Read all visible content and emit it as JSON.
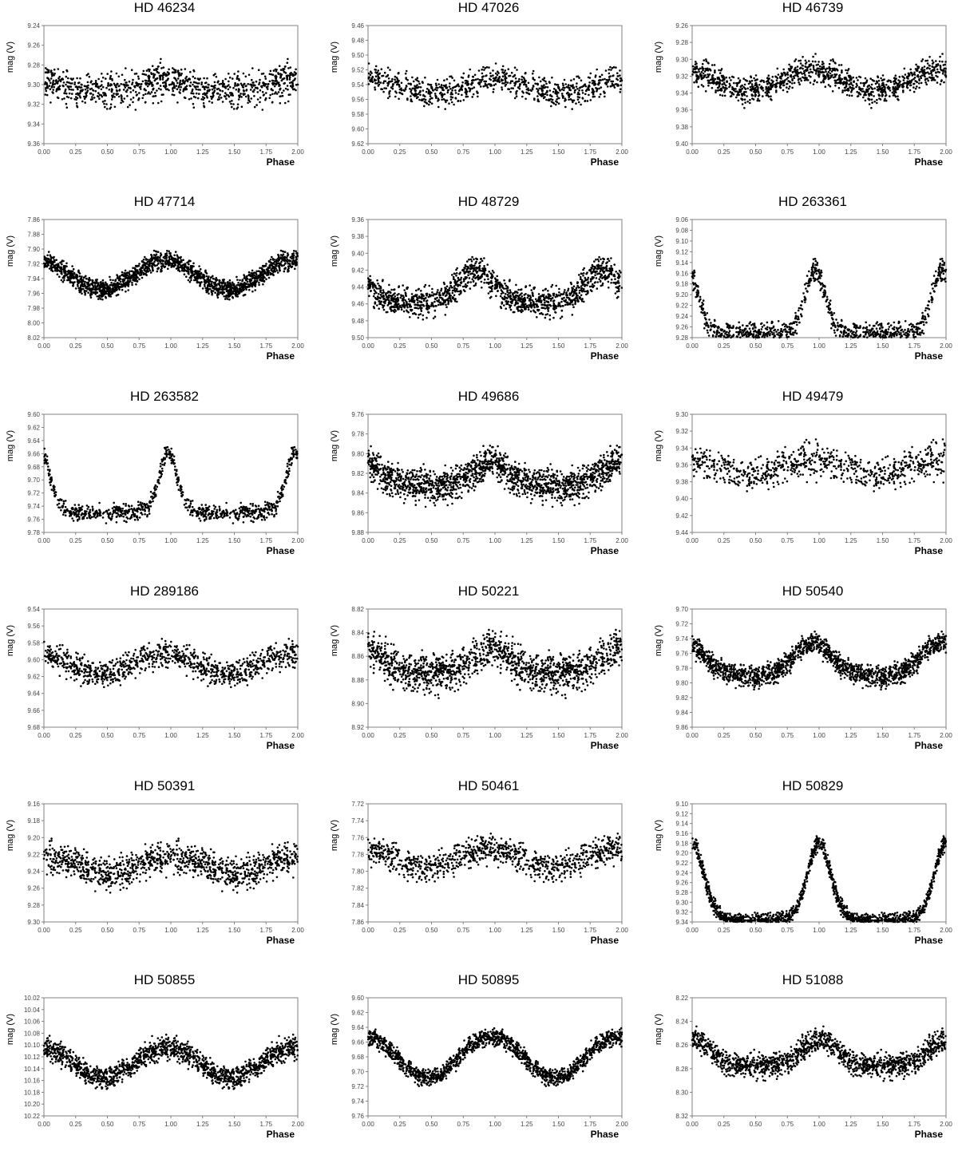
{
  "figure": {
    "xlabel": "Phase",
    "ylabel": "mag (V)",
    "x_ticks": [
      "0.00",
      "0.25",
      "0.50",
      "0.75",
      "1.00",
      "1.25",
      "1.50",
      "1.75",
      "2.00"
    ],
    "point_color": "#000000"
  },
  "chart_data": [
    {
      "type": "scatter",
      "title": "HD 46234",
      "y_ticks": [
        "9.24",
        "9.26",
        "9.28",
        "9.30",
        "9.32",
        "9.34",
        "9.36"
      ],
      "ylim": [
        9.36,
        9.24
      ],
      "xlim": [
        0,
        2
      ],
      "model": {
        "mean": 9.302,
        "amp": -0.006,
        "peak": 0.98,
        "sharp": 1,
        "noise": 0.012,
        "n": 480
      }
    },
    {
      "type": "scatter",
      "title": "HD 47026",
      "y_ticks": [
        "9.46",
        "9.48",
        "9.50",
        "9.52",
        "9.54",
        "9.56",
        "9.58",
        "9.60",
        "9.62"
      ],
      "ylim": [
        9.62,
        9.46
      ],
      "xlim": [
        0,
        2
      ],
      "model": {
        "mean": 9.542,
        "amp": -0.01,
        "peak": 1.0,
        "sharp": 1,
        "noise": 0.013,
        "n": 420
      }
    },
    {
      "type": "scatter",
      "title": "HD 46739",
      "y_ticks": [
        "9.26",
        "9.28",
        "9.30",
        "9.32",
        "9.34",
        "9.36",
        "9.38",
        "9.40"
      ],
      "ylim": [
        9.4,
        9.26
      ],
      "xlim": [
        0,
        2
      ],
      "model": {
        "mean": 9.325,
        "amp": -0.012,
        "peak": 0.95,
        "sharp": 1,
        "noise": 0.011,
        "n": 560
      }
    },
    {
      "type": "scatter",
      "title": "HD 47714",
      "y_ticks": [
        "7.86",
        "7.88",
        "7.90",
        "7.92",
        "7.94",
        "7.96",
        "7.98",
        "8.00",
        "8.02"
      ],
      "ylim": [
        8.02,
        7.86
      ],
      "xlim": [
        0,
        2
      ],
      "model": {
        "mean": 7.935,
        "amp": -0.02,
        "peak": 0.95,
        "sharp": 1,
        "noise": 0.009,
        "n": 850
      }
    },
    {
      "type": "scatter",
      "title": "HD 48729",
      "y_ticks": [
        "9.36",
        "9.38",
        "9.40",
        "9.42",
        "9.44",
        "9.46",
        "9.48",
        "9.50"
      ],
      "ylim": [
        9.5,
        9.36
      ],
      "xlim": [
        0,
        2
      ],
      "model": {
        "mean": 9.44,
        "amp": -0.02,
        "peak": 0.85,
        "sharp": 1.5,
        "noise": 0.012,
        "n": 700
      }
    },
    {
      "type": "scatter",
      "title": "HD 263361",
      "y_ticks": [
        "9.06",
        "9.08",
        "9.10",
        "9.12",
        "9.14",
        "9.16",
        "9.18",
        "9.20",
        "9.22",
        "9.24",
        "9.26",
        "9.28"
      ],
      "ylim": [
        9.28,
        9.06
      ],
      "xlim": [
        0,
        2
      ],
      "model": {
        "mean": 9.215,
        "amp": -0.06,
        "peak": 0.97,
        "sharp": 4,
        "noise": 0.015,
        "n": 560
      }
    },
    {
      "type": "scatter",
      "title": "HD 263582",
      "y_ticks": [
        "9.60",
        "9.62",
        "9.64",
        "9.66",
        "9.68",
        "9.70",
        "9.72",
        "9.74",
        "9.76",
        "9.78"
      ],
      "ylim": [
        9.78,
        9.6
      ],
      "xlim": [
        0,
        2
      ],
      "model": {
        "mean": 9.705,
        "amp": -0.045,
        "peak": 0.98,
        "sharp": 5,
        "noise": 0.009,
        "n": 430
      }
    },
    {
      "type": "scatter",
      "title": "HD 49686",
      "y_ticks": [
        "9.76",
        "9.78",
        "9.80",
        "9.82",
        "9.84",
        "9.86",
        "9.88"
      ],
      "ylim": [
        9.88,
        9.76
      ],
      "xlim": [
        0,
        2
      ],
      "model": {
        "mean": 9.822,
        "amp": -0.012,
        "peak": 0.97,
        "sharp": 1.4,
        "noise": 0.011,
        "n": 800
      }
    },
    {
      "type": "scatter",
      "title": "HD 49479",
      "y_ticks": [
        "9.30",
        "9.32",
        "9.34",
        "9.36",
        "9.38",
        "9.40",
        "9.42",
        "9.44"
      ],
      "ylim": [
        9.44,
        9.3
      ],
      "xlim": [
        0,
        2
      ],
      "model": {
        "mean": 9.362,
        "amp": -0.008,
        "peak": 0.95,
        "sharp": 1,
        "noise": 0.014,
        "n": 380
      }
    },
    {
      "type": "scatter",
      "title": "HD 289186",
      "y_ticks": [
        "9.54",
        "9.56",
        "9.58",
        "9.60",
        "9.62",
        "9.64",
        "9.66",
        "9.68"
      ],
      "ylim": [
        9.68,
        9.54
      ],
      "xlim": [
        0,
        2
      ],
      "model": {
        "mean": 9.605,
        "amp": -0.012,
        "peak": 0.95,
        "sharp": 1,
        "noise": 0.011,
        "n": 500
      }
    },
    {
      "type": "scatter",
      "title": "HD 50221",
      "y_ticks": [
        "8.82",
        "8.84",
        "8.86",
        "8.88",
        "8.90",
        "8.92"
      ],
      "ylim": [
        8.92,
        8.82
      ],
      "xlim": [
        0,
        2
      ],
      "model": {
        "mean": 8.865,
        "amp": -0.012,
        "peak": 0.97,
        "sharp": 1.3,
        "noise": 0.011,
        "n": 720
      }
    },
    {
      "type": "scatter",
      "title": "HD 50540",
      "y_ticks": [
        "9.70",
        "9.72",
        "9.74",
        "9.76",
        "9.78",
        "9.80",
        "9.82",
        "9.84",
        "9.86"
      ],
      "ylim": [
        9.86,
        9.7
      ],
      "xlim": [
        0,
        2
      ],
      "model": {
        "mean": 9.77,
        "amp": -0.025,
        "peak": 0.95,
        "sharp": 1.2,
        "noise": 0.01,
        "n": 780
      }
    },
    {
      "type": "scatter",
      "title": "HD 50391",
      "y_ticks": [
        "9.16",
        "9.18",
        "9.20",
        "9.22",
        "9.24",
        "9.26",
        "9.28",
        "9.30"
      ],
      "ylim": [
        9.3,
        9.16
      ],
      "xlim": [
        0,
        2
      ],
      "model": {
        "mean": 9.232,
        "amp": -0.01,
        "peak": 1.0,
        "sharp": 1,
        "noise": 0.013,
        "n": 560
      }
    },
    {
      "type": "scatter",
      "title": "HD 50461",
      "y_ticks": [
        "7.72",
        "7.74",
        "7.76",
        "7.78",
        "7.80",
        "7.82",
        "7.84",
        "7.86"
      ],
      "ylim": [
        7.86,
        7.72
      ],
      "xlim": [
        0,
        2
      ],
      "model": {
        "mean": 7.785,
        "amp": -0.012,
        "peak": 0.95,
        "sharp": 1,
        "noise": 0.012,
        "n": 480
      }
    },
    {
      "type": "scatter",
      "title": "HD 50829",
      "y_ticks": [
        "9.10",
        "9.12",
        "9.14",
        "9.16",
        "9.18",
        "9.20",
        "9.22",
        "9.24",
        "9.26",
        "9.28",
        "9.30",
        "9.32",
        "9.34"
      ],
      "ylim": [
        9.34,
        9.1
      ],
      "xlim": [
        0,
        2
      ],
      "model": {
        "mean": 9.26,
        "amp": -0.08,
        "peak": 1.0,
        "sharp": 3,
        "noise": 0.011,
        "n": 900
      }
    },
    {
      "type": "scatter",
      "title": "HD 50855",
      "y_ticks": [
        "10.02",
        "10.04",
        "10.06",
        "10.08",
        "10.10",
        "10.12",
        "10.14",
        "10.16",
        "10.18",
        "10.20",
        "10.22"
      ],
      "ylim": [
        10.22,
        10.02
      ],
      "xlim": [
        0,
        2
      ],
      "model": {
        "mean": 10.13,
        "amp": -0.025,
        "peak": 0.97,
        "sharp": 1,
        "noise": 0.014,
        "n": 720
      }
    },
    {
      "type": "scatter",
      "title": "HD 50895",
      "y_ticks": [
        "9.60",
        "9.62",
        "9.64",
        "9.66",
        "9.68",
        "9.70",
        "9.72",
        "9.74",
        "9.76"
      ],
      "ylim": [
        9.76,
        9.6
      ],
      "xlim": [
        0,
        2
      ],
      "model": {
        "mean": 9.68,
        "amp": -0.028,
        "peak": 0.97,
        "sharp": 1,
        "noise": 0.008,
        "n": 720
      }
    },
    {
      "type": "scatter",
      "title": "HD 51088",
      "y_ticks": [
        "8.22",
        "8.24",
        "8.26",
        "8.28",
        "8.30",
        "8.32"
      ],
      "ylim": [
        8.32,
        8.22
      ],
      "xlim": [
        0,
        2
      ],
      "model": {
        "mean": 8.267,
        "amp": -0.012,
        "peak": 1.0,
        "sharp": 1.5,
        "noise": 0.007,
        "n": 700
      }
    }
  ]
}
